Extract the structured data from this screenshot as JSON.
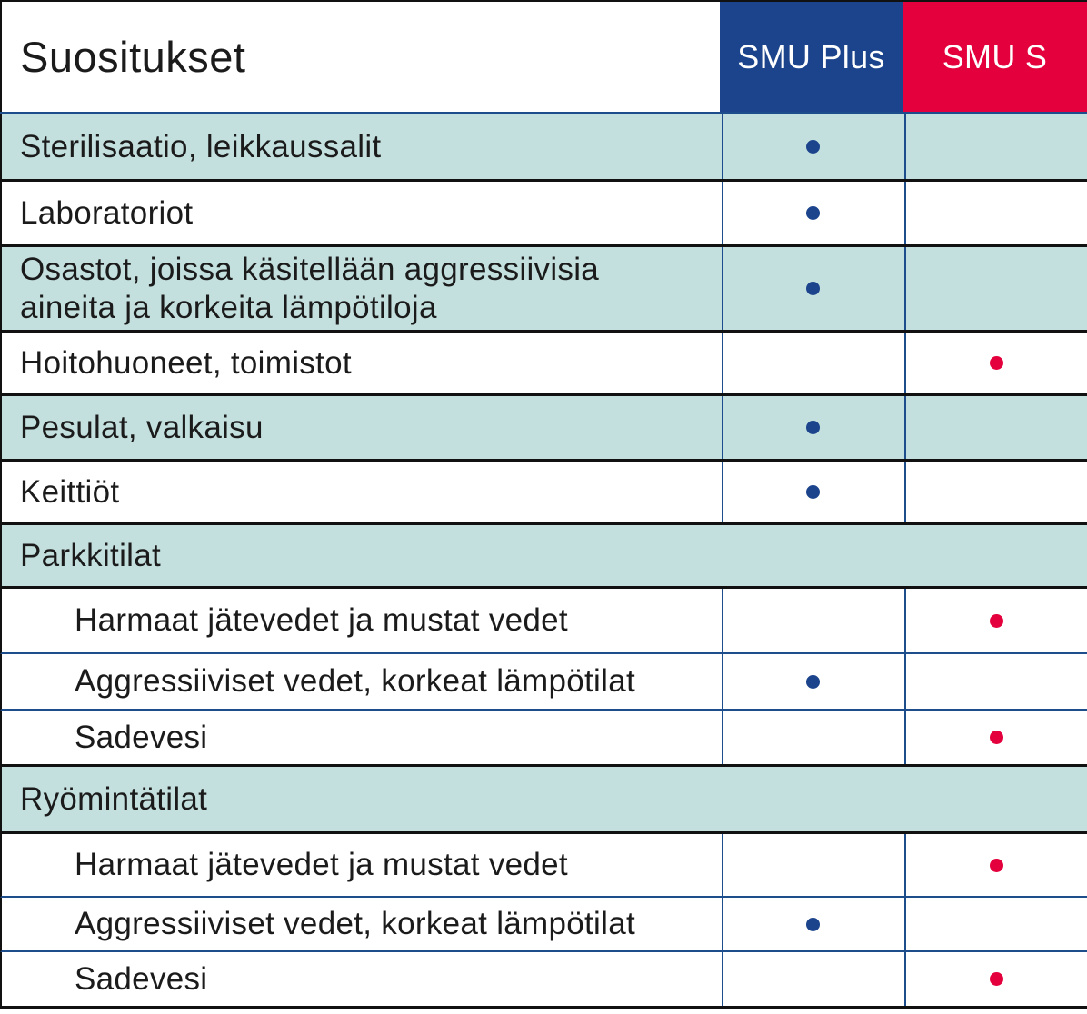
{
  "colors": {
    "teal_row": "#c3e0de",
    "white_row": "#ffffff",
    "smu_plus": "#1c448c",
    "smu_s": "#e3003c",
    "rule": "#111111",
    "grid": "#1e4d8c"
  },
  "header": {
    "title": "Suositukset",
    "col_plus": "SMU Plus",
    "col_s": "SMU S"
  },
  "rows": [
    {
      "label": "Sterilisaatio, leikkaussalit",
      "plus": true,
      "s": false
    },
    {
      "label": "Laboratoriot",
      "plus": true,
      "s": false
    },
    {
      "label_lines": [
        "Osastot, joissa käsitellään aggressiivisia",
        "aineita ja korkeita lämpötiloja"
      ],
      "plus": true,
      "s": false
    },
    {
      "label": "Hoitohuoneet, toimistot",
      "plus": false,
      "s": true
    },
    {
      "label": "Pesulat, valkaisu",
      "plus": true,
      "s": false
    },
    {
      "label": "Keittiöt",
      "plus": true,
      "s": false
    },
    {
      "label": "Parkkitilat",
      "section": true
    },
    {
      "label": "Harmaat jätevedet ja mustat vedet",
      "sub": true,
      "plus": false,
      "s": true
    },
    {
      "label": "Aggressiiviset vedet, korkeat lämpötilat",
      "sub": true,
      "plus": true,
      "s": false
    },
    {
      "label": "Sadevesi",
      "sub": true,
      "plus": false,
      "s": true
    },
    {
      "label": "Ryömintätilat",
      "section": true
    },
    {
      "label": "Harmaat jätevedet ja mustat vedet",
      "sub": true,
      "plus": false,
      "s": true
    },
    {
      "label": "Aggressiiviset vedet, korkeat lämpötilat",
      "sub": true,
      "plus": true,
      "s": false
    },
    {
      "label": "Sadevesi",
      "sub": true,
      "plus": false,
      "s": true
    }
  ]
}
